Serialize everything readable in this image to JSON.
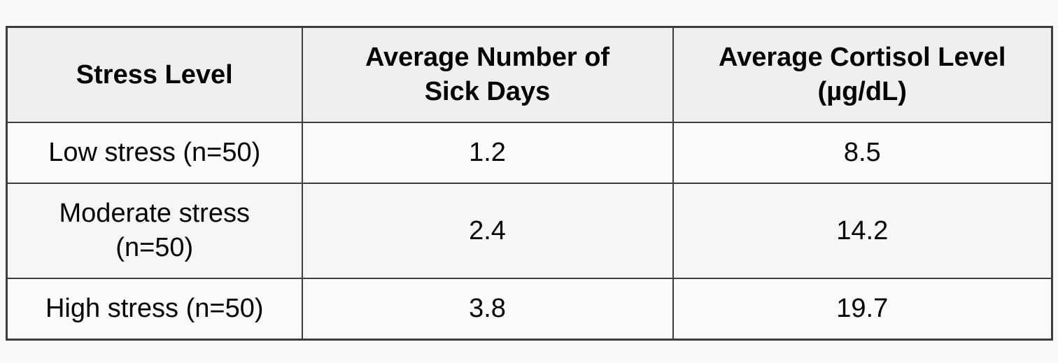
{
  "table": {
    "header": [
      "Stress Level",
      "Average Number of\nSick Days",
      "Average Cortisol Level\n(µg/dL)"
    ],
    "rows": [
      [
        "Low stress (n=50)",
        "1.2",
        "8.5"
      ],
      [
        "Moderate stress\n(n=50)",
        "2.4",
        "14.2"
      ],
      [
        "High stress (n=50)",
        "3.8",
        "19.7"
      ]
    ]
  },
  "chart_data": {
    "type": "table",
    "title": "",
    "columns": [
      "Stress Level",
      "Average Number of Sick Days",
      "Average Cortisol Level (µg/dL)"
    ],
    "rows": [
      {
        "stress_level": "Low stress (n=50)",
        "n": 50,
        "avg_sick_days": 1.2,
        "avg_cortisol_ug_dl": 8.5
      },
      {
        "stress_level": "Moderate stress (n=50)",
        "n": 50,
        "avg_sick_days": 2.4,
        "avg_cortisol_ug_dl": 14.2
      },
      {
        "stress_level": "High stress (n=50)",
        "n": 50,
        "avg_sick_days": 3.8,
        "avg_cortisol_ug_dl": 19.7
      }
    ],
    "layout": {
      "header_background": "#f0efee",
      "stripe_background": "#f7f6f6",
      "row_background": "#fbfbfb",
      "border_color": "#3d3d3d",
      "page_background": "#fafafa",
      "text_color": "#000000"
    }
  }
}
